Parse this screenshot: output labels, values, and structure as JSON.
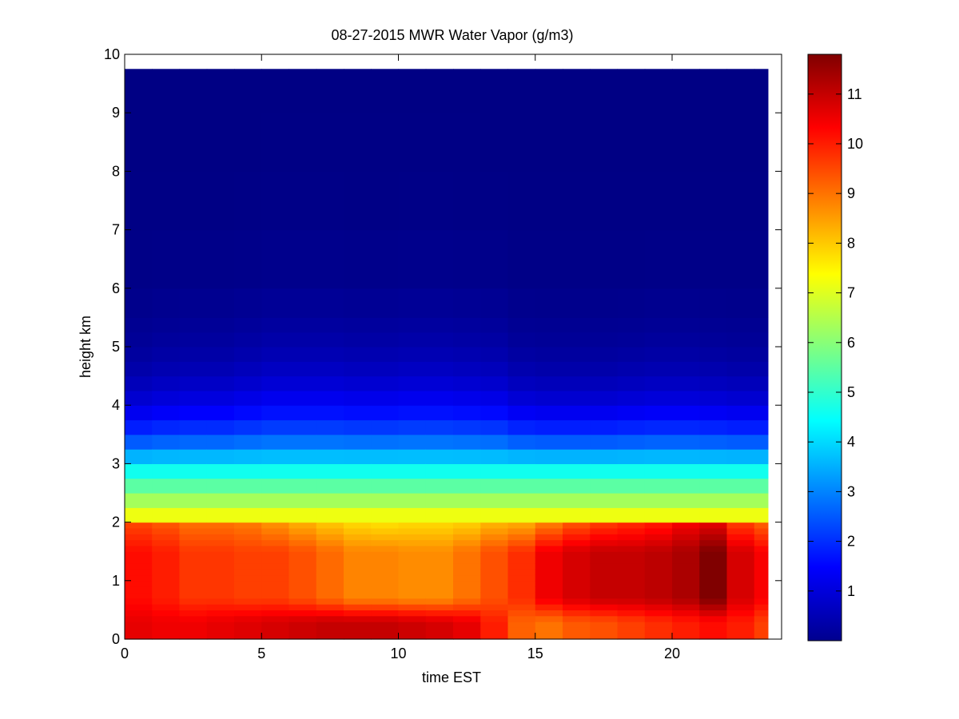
{
  "chart_data": {
    "type": "heatmap",
    "title": "08-27-2015 MWR Water Vapor (g/m3)",
    "xlabel": "time EST",
    "ylabel": "height km",
    "xlim": [
      0,
      24
    ],
    "ylim": [
      0,
      10
    ],
    "x_ticks": [
      0,
      5,
      10,
      15,
      20
    ],
    "y_ticks": [
      0,
      1,
      2,
      3,
      4,
      5,
      6,
      7,
      8,
      9,
      10
    ],
    "colorbar": {
      "range": [
        0,
        11.8
      ],
      "ticks": [
        1,
        2,
        3,
        4,
        5,
        6,
        7,
        8,
        9,
        10,
        11
      ],
      "colormap": "jet"
    },
    "x": [
      0.5,
      1.5,
      2.5,
      3.5,
      4.5,
      5.5,
      6.5,
      7.5,
      8.5,
      9.5,
      10.5,
      11.5,
      12.5,
      13.5,
      14.5,
      15.5,
      16.5,
      17.5,
      18.5,
      19.5,
      20.5,
      21.5,
      22.5,
      23.5
    ],
    "y": [
      0,
      0.1,
      0.2,
      0.3,
      0.4,
      0.5,
      0.6,
      0.7,
      0.8,
      0.9,
      1.0,
      1.1,
      1.2,
      1.3,
      1.4,
      1.5,
      1.6,
      1.7,
      1.8,
      1.9,
      2.0,
      2.25,
      2.5,
      2.75,
      3.0,
      3.25,
      3.5,
      3.75,
      4.0,
      4.25,
      4.5,
      4.75,
      5.0,
      5.25,
      5.5,
      6.0,
      7.0,
      8.0,
      9.0,
      10.0
    ],
    "surface": [
      10.6,
      10.5,
      10.5,
      10.6,
      10.7,
      10.8,
      10.9,
      11.0,
      11.0,
      11.0,
      10.9,
      10.8,
      10.6,
      10.0,
      9.2,
      9.0,
      9.3,
      9.4,
      9.6,
      9.8,
      10.0,
      10.2,
      10.0,
      9.6
    ],
    "peak": [
      10.2,
      10.0,
      9.7,
      9.7,
      9.6,
      9.6,
      9.4,
      9.1,
      8.8,
      8.8,
      8.7,
      8.7,
      9.0,
      9.4,
      9.8,
      10.5,
      10.8,
      11.0,
      11.0,
      11.1,
      11.3,
      11.8,
      10.8,
      10.4
    ],
    "top2": [
      9.5,
      9.3,
      9.0,
      9.0,
      8.9,
      8.6,
      8.3,
      8.0,
      7.8,
      7.7,
      7.8,
      7.8,
      7.9,
      8.2,
      8.3,
      8.8,
      9.3,
      9.6,
      9.8,
      10.0,
      10.4,
      10.6,
      9.6,
      9.2
    ],
    "depth": [
      2.6,
      2.8,
      2.9,
      2.9,
      3.1,
      3.3,
      3.3,
      3.3,
      3.2,
      3.2,
      3.3,
      3.3,
      3.2,
      3.1,
      2.7,
      2.6,
      2.6,
      2.6,
      2.7,
      2.8,
      2.8,
      2.7,
      2.6,
      2.6
    ],
    "vapor_top": 9.75
  }
}
